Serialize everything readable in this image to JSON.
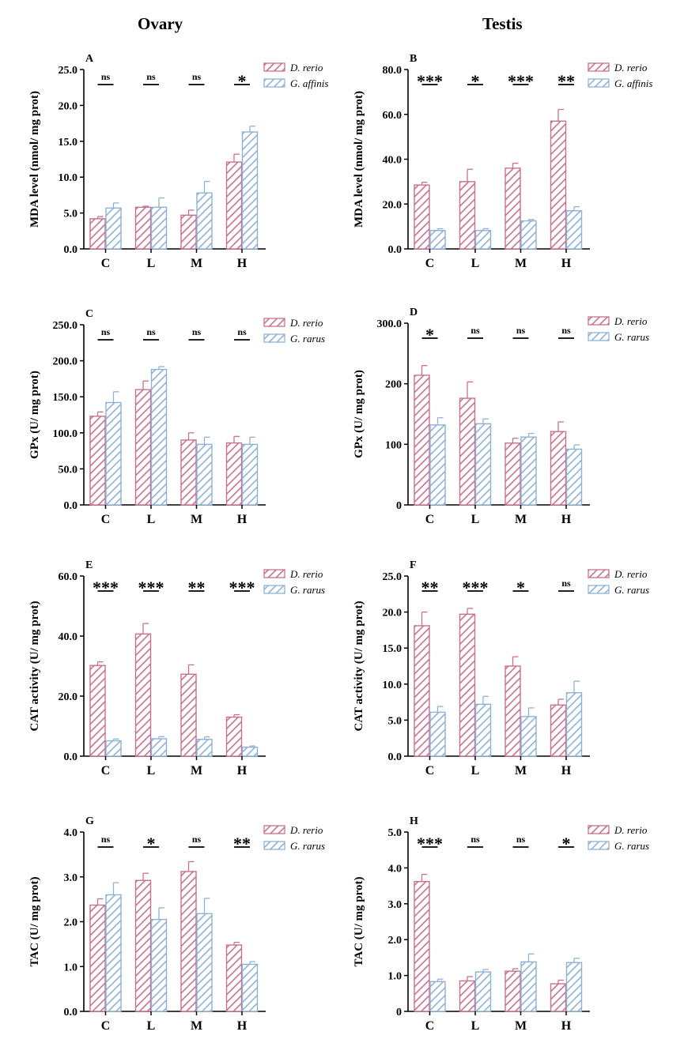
{
  "titles": {
    "left": "Ovary",
    "right": "Testis"
  },
  "colors": {
    "pink": "#c8708f",
    "blue": "#8eb2d6"
  },
  "chart_data": [
    {
      "id": "A",
      "label": "A",
      "type": "bar",
      "ylabel": "MDA level (nmol/ mg prot)",
      "ylim": [
        0,
        25
      ],
      "yticks": [
        "0.0",
        "5.0",
        "10.0",
        "15.0",
        "20.0",
        "25.0"
      ],
      "ytick_values": [
        0,
        5,
        10,
        15,
        20,
        25
      ],
      "categories": [
        "C",
        "L",
        "M",
        "H"
      ],
      "series": [
        {
          "name": "D. rerio",
          "values": [
            4.2,
            5.8,
            4.7,
            12.1
          ],
          "errors": [
            0.3,
            0.15,
            0.7,
            1.1
          ]
        },
        {
          "name": "G. affinis",
          "values": [
            5.7,
            5.8,
            7.8,
            16.3
          ],
          "errors": [
            0.7,
            1.3,
            1.6,
            0.8
          ]
        }
      ],
      "significance": [
        "ns",
        "ns",
        "ns",
        "*"
      ]
    },
    {
      "id": "B",
      "label": "B",
      "type": "bar",
      "ylabel": "MDA level (nmol/ mg prot)",
      "ylim": [
        0,
        80
      ],
      "yticks": [
        "0.0",
        "20.0",
        "40.0",
        "60.0",
        "80.0"
      ],
      "ytick_values": [
        0,
        20,
        40,
        60,
        80
      ],
      "categories": [
        "C",
        "L",
        "M",
        "H"
      ],
      "series": [
        {
          "name": "D. rerio",
          "values": [
            28.5,
            30,
            36,
            57
          ],
          "errors": [
            1.2,
            5.5,
            2.2,
            5.2
          ]
        },
        {
          "name": "G. affinis",
          "values": [
            8.2,
            8.2,
            12.5,
            17
          ],
          "errors": [
            0.8,
            0.8,
            0.6,
            1.8
          ]
        }
      ],
      "significance": [
        "***",
        "*",
        "***",
        "**"
      ]
    },
    {
      "id": "C",
      "label": "C",
      "type": "bar",
      "ylabel": "GPx (U/ mg prot)",
      "ylim": [
        0,
        250
      ],
      "yticks": [
        "0.0",
        "50.0",
        "100.0",
        "150.0",
        "200.0",
        "250.0"
      ],
      "ytick_values": [
        0,
        50,
        100,
        150,
        200,
        250
      ],
      "categories": [
        "C",
        "L",
        "M",
        "H"
      ],
      "series": [
        {
          "name": "D. rerio",
          "values": [
            123,
            160,
            90,
            86
          ],
          "errors": [
            6,
            12,
            10,
            9
          ]
        },
        {
          "name": "G. rarus",
          "values": [
            142,
            188,
            84,
            84
          ],
          "errors": [
            15,
            4,
            10,
            10
          ]
        }
      ],
      "significance": [
        "ns",
        "ns",
        "ns",
        "ns"
      ]
    },
    {
      "id": "D",
      "label": "D",
      "type": "bar",
      "ylabel": "GPx (U/ mg prot)",
      "ylim": [
        0,
        300
      ],
      "yticks": [
        "0",
        "100",
        "200",
        "300.0"
      ],
      "ytick_values": [
        0,
        100,
        200,
        300
      ],
      "categories": [
        "C",
        "L",
        "M",
        "H"
      ],
      "series": [
        {
          "name": "D. rerio",
          "values": [
            214,
            176,
            102,
            121
          ],
          "errors": [
            16,
            27,
            8,
            16
          ]
        },
        {
          "name": "G. rarus",
          "values": [
            132,
            134,
            112,
            92
          ],
          "errors": [
            12,
            8,
            6,
            7
          ]
        }
      ],
      "significance": [
        "*",
        "ns",
        "ns",
        "ns"
      ]
    },
    {
      "id": "E",
      "label": "E",
      "type": "bar",
      "ylabel": "CAT activity (U/ mg prot)",
      "ylim": [
        0,
        60
      ],
      "yticks": [
        "0.0",
        "20.0",
        "40.0",
        "60.0"
      ],
      "ytick_values": [
        0,
        20,
        40,
        60
      ],
      "categories": [
        "C",
        "L",
        "M",
        "H"
      ],
      "series": [
        {
          "name": "D. rerio",
          "values": [
            30.2,
            40.7,
            27.3,
            13
          ],
          "errors": [
            1.2,
            3.5,
            3.1,
            0.8
          ]
        },
        {
          "name": "G. rarus",
          "values": [
            5.1,
            5.8,
            5.6,
            3
          ],
          "errors": [
            0.6,
            0.7,
            0.8,
            0.4
          ]
        }
      ],
      "significance": [
        "***",
        "***",
        "**",
        "***"
      ]
    },
    {
      "id": "F",
      "label": "F",
      "type": "bar",
      "ylabel": "CAT activity (U/ mg prot)",
      "ylim": [
        0,
        25
      ],
      "yticks": [
        "0.0",
        "5.0",
        "10.0",
        "15.0",
        "20.0",
        "25.0"
      ],
      "ytick_values": [
        0,
        5,
        10,
        15,
        20,
        25
      ],
      "categories": [
        "C",
        "L",
        "M",
        "H"
      ],
      "series": [
        {
          "name": "D. rerio",
          "values": [
            18.1,
            19.7,
            12.5,
            7.1
          ],
          "errors": [
            1.9,
            0.8,
            1.3,
            0.8
          ]
        },
        {
          "name": "G. rarus",
          "values": [
            6.1,
            7.2,
            5.5,
            8.8
          ],
          "errors": [
            0.8,
            1.1,
            1.2,
            1.6
          ]
        }
      ],
      "significance": [
        "**",
        "***",
        "*",
        "ns"
      ]
    },
    {
      "id": "G",
      "label": "G",
      "type": "bar",
      "ylabel": "TAC  (U/ mg prot)",
      "ylim": [
        0,
        4
      ],
      "yticks": [
        "0.0",
        "1.0",
        "2.0",
        "3.0",
        "4.0"
      ],
      "ytick_values": [
        0,
        1,
        2,
        3,
        4
      ],
      "categories": [
        "C",
        "L",
        "M",
        "H"
      ],
      "series": [
        {
          "name": "D. rerio",
          "values": [
            2.37,
            2.92,
            3.12,
            1.48
          ],
          "errors": [
            0.14,
            0.16,
            0.22,
            0.06
          ]
        },
        {
          "name": "G. rarus",
          "values": [
            2.6,
            2.05,
            2.18,
            1.05
          ],
          "errors": [
            0.27,
            0.26,
            0.34,
            0.06
          ]
        }
      ],
      "significance": [
        "ns",
        "*",
        "ns",
        "**"
      ]
    },
    {
      "id": "H",
      "label": "H",
      "type": "bar",
      "ylabel": "TAC  (U/ mg prot)",
      "ylim": [
        0,
        5
      ],
      "yticks": [
        "0",
        "1.0",
        "2.0",
        "3.0",
        "4.0",
        "5.0"
      ],
      "ytick_values": [
        0,
        1,
        2,
        3,
        4,
        5
      ],
      "categories": [
        "C",
        "L",
        "M",
        "H"
      ],
      "series": [
        {
          "name": "D. rerio",
          "values": [
            3.62,
            0.85,
            1.12,
            0.77
          ],
          "errors": [
            0.2,
            0.12,
            0.07,
            0.1
          ]
        },
        {
          "name": "G. rarus",
          "values": [
            0.83,
            1.1,
            1.38,
            1.36
          ],
          "errors": [
            0.07,
            0.07,
            0.22,
            0.12
          ]
        }
      ],
      "significance": [
        "***",
        "ns",
        "ns",
        "*"
      ]
    }
  ]
}
